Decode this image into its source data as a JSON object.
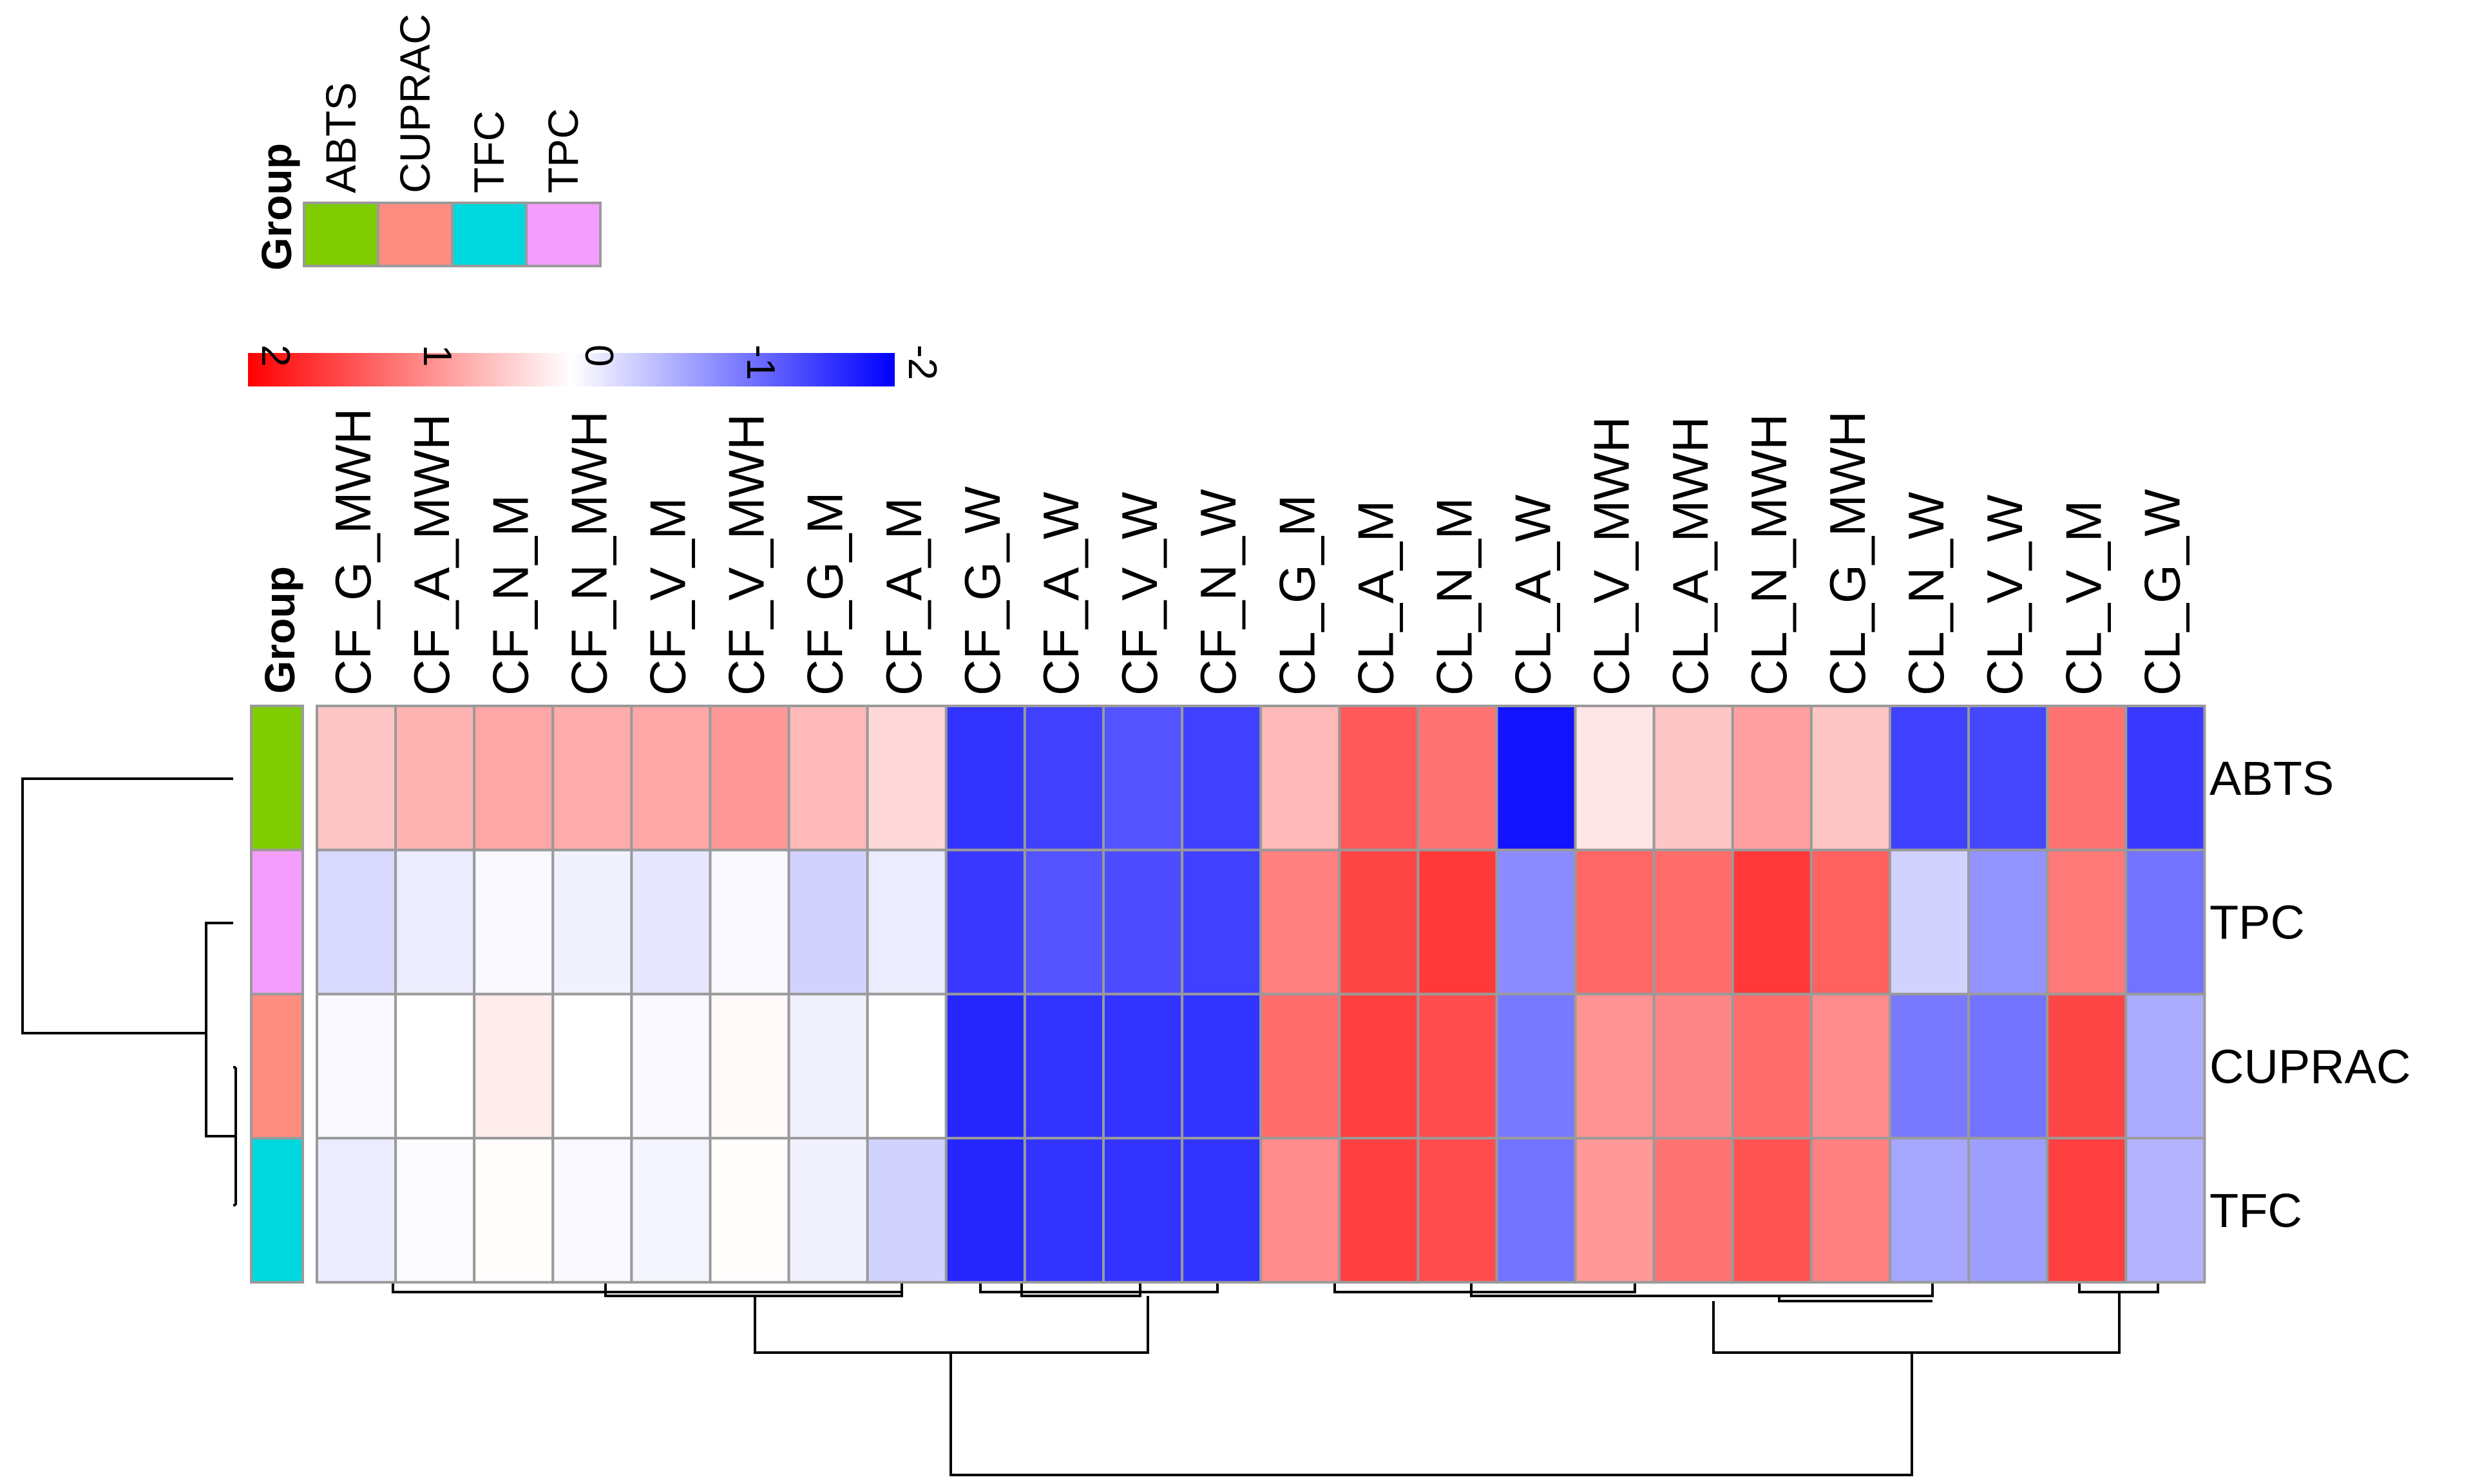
{
  "chart_data": {
    "type": "heatmap",
    "title": "",
    "annotation_title": "Group",
    "rows": [
      "ABTS",
      "TPC",
      "CUPRAC",
      "TFC"
    ],
    "columns": [
      "CF_G_MWH",
      "CF_A_MWH",
      "CF_N_M",
      "CF_N_MWH",
      "CF_V_M",
      "CF_V_MWH",
      "CF_G_M",
      "CF_A_M",
      "CF_G_W",
      "CF_A_W",
      "CF_V_W",
      "CF_N_W",
      "CL_G_M",
      "CL_A_M",
      "CL_N_M",
      "CL_A_W",
      "CL_V_MWH",
      "CL_A_MWH",
      "CL_N_MWH",
      "CL_G_MWH",
      "CL_N_W",
      "CL_V_W",
      "CL_V_M",
      "CL_G_W"
    ],
    "values": [
      [
        0.45,
        0.6,
        0.7,
        0.65,
        0.7,
        0.8,
        0.55,
        0.3,
        -1.6,
        -1.5,
        -1.35,
        -1.5,
        0.55,
        1.3,
        1.1,
        -1.85,
        0.2,
        0.45,
        0.75,
        0.45,
        -1.5,
        -1.45,
        1.1,
        -1.55
      ],
      [
        -0.3,
        -0.15,
        -0.05,
        -0.1,
        -0.2,
        -0.05,
        -0.35,
        -0.15,
        -1.55,
        -1.35,
        -1.4,
        -1.5,
        1.0,
        1.45,
        1.55,
        -0.9,
        1.2,
        1.15,
        1.55,
        1.25,
        -0.35,
        -0.85,
        1.05,
        -1.1
      ],
      [
        -0.05,
        0.0,
        0.15,
        0.0,
        -0.05,
        0.05,
        -0.1,
        0.0,
        -1.7,
        -1.6,
        -1.6,
        -1.6,
        1.15,
        1.5,
        1.4,
        -1.05,
        0.85,
        0.95,
        1.15,
        0.9,
        -1.05,
        -1.1,
        1.45,
        -0.65
      ],
      [
        -0.15,
        -0.03,
        0.02,
        -0.05,
        -0.08,
        0.02,
        -0.1,
        -0.35,
        -1.7,
        -1.6,
        -1.6,
        -1.6,
        0.9,
        1.5,
        1.4,
        -1.1,
        0.8,
        1.1,
        1.35,
        1.0,
        -0.7,
        -0.75,
        1.5,
        -0.6
      ]
    ],
    "color_scale": {
      "min": -2,
      "max": 2,
      "low_color": "#0000ff",
      "mid_color": "#ffffff",
      "high_color": "#ff0000"
    },
    "legend_ticks": [
      2,
      1,
      0,
      -1,
      -2
    ],
    "groups": [
      {
        "name": "ABTS",
        "color": "#7fcd00"
      },
      {
        "name": "CUPRAC",
        "color": "#ff8c81"
      },
      {
        "name": "TFC",
        "color": "#00d8df"
      },
      {
        "name": "TPC",
        "color": "#f59dff"
      }
    ],
    "row_groups": [
      "ABTS",
      "TPC",
      "CUPRAC",
      "TFC"
    ],
    "grid": true
  }
}
